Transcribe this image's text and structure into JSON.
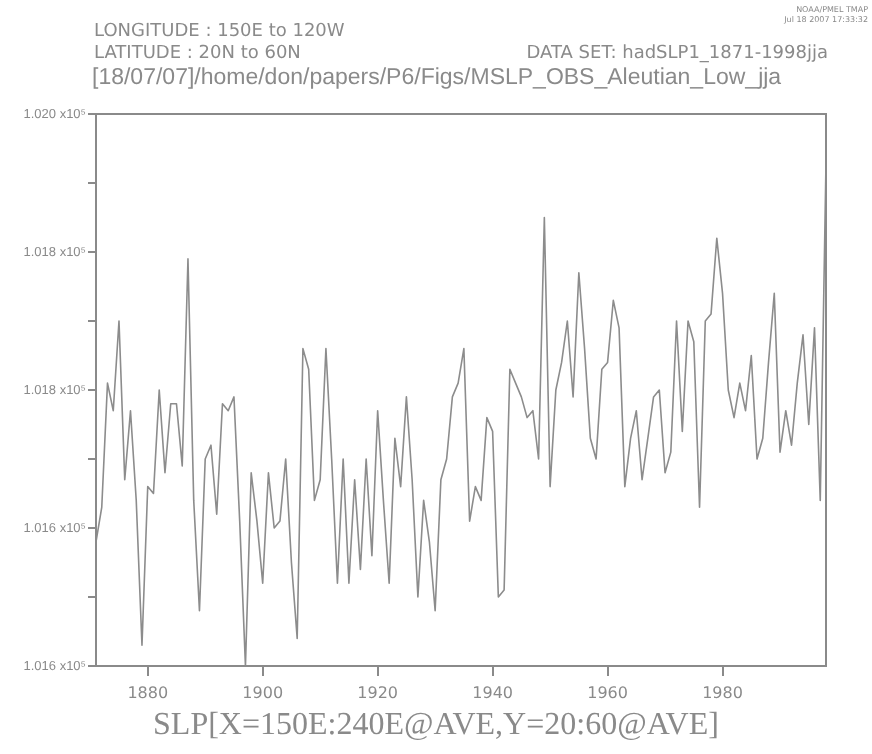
{
  "chart_data": {
    "type": "line",
    "title": "[18/07/07]/home/don/papers/P6/Figs/MSLP_OBS_Aleutian_Low_jja",
    "xlabel": "SLP[X=150E:240E@AVE,Y=20:60@AVE]",
    "annotations": [
      "LONGITUDE : 150E to 120W",
      "LATITUDE : 20N to 60N",
      "DATA SET: hadSLP1_1871-1998jja",
      "NOAA/PMEL TMAP",
      "Jul 18 2007 17:33:32"
    ],
    "x": [
      1871,
      1872,
      1873,
      1874,
      1875,
      1876,
      1877,
      1878,
      1879,
      1880,
      1881,
      1882,
      1883,
      1884,
      1885,
      1886,
      1887,
      1888,
      1889,
      1890,
      1891,
      1892,
      1893,
      1894,
      1895,
      1896,
      1897,
      1898,
      1899,
      1900,
      1901,
      1902,
      1903,
      1904,
      1905,
      1906,
      1907,
      1908,
      1909,
      1910,
      1911,
      1912,
      1913,
      1914,
      1915,
      1916,
      1917,
      1918,
      1919,
      1920,
      1921,
      1922,
      1923,
      1924,
      1925,
      1926,
      1927,
      1928,
      1929,
      1930,
      1931,
      1932,
      1933,
      1934,
      1935,
      1936,
      1937,
      1938,
      1939,
      1940,
      1941,
      1942,
      1943,
      1944,
      1945,
      1946,
      1947,
      1948,
      1949,
      1950,
      1951,
      1952,
      1953,
      1954,
      1955,
      1956,
      1957,
      1958,
      1959,
      1960,
      1961,
      1962,
      1963,
      1964,
      1965,
      1966,
      1967,
      1968,
      1969,
      1970,
      1971,
      1972,
      1973,
      1974,
      1975,
      1976,
      1977,
      1978,
      1979,
      1980,
      1981,
      1982,
      1983,
      1984,
      1985,
      1986,
      1987,
      1988,
      1989,
      1990,
      1991,
      1992,
      1993,
      1994,
      1995,
      1996,
      1997,
      1998
    ],
    "series": [
      {
        "color": "#8c8c8c",
        "values": [
          101640,
          101665,
          101755,
          101735,
          101800,
          101685,
          101735,
          101670,
          101565,
          101680,
          101675,
          101750,
          101690,
          101740,
          101740,
          101695,
          101845,
          101670,
          101590,
          101700,
          101710,
          101660,
          101740,
          101735,
          101745,
          101655,
          101550,
          101690,
          101655,
          101610,
          101690,
          101650,
          101655,
          101700,
          101625,
          101570,
          101780,
          101765,
          101670,
          101685,
          101780,
          101700,
          101610,
          101700,
          101610,
          101685,
          101620,
          101700,
          101630,
          101735,
          101670,
          101610,
          101715,
          101680,
          101745,
          101685,
          101600,
          101670,
          101640,
          101590,
          101685,
          101700,
          101745,
          101755,
          101780,
          101655,
          101680,
          101670,
          101730,
          101720,
          101600,
          101605,
          101765,
          101755,
          101745,
          101730,
          101735,
          101700,
          101875,
          101680,
          101750,
          101770,
          101800,
          101745,
          101835,
          101780,
          101715,
          101700,
          101765,
          101770,
          101815,
          101795,
          101680,
          101715,
          101735,
          101685,
          101715,
          101745,
          101750,
          101690,
          101705,
          101800,
          101720,
          101800,
          101785,
          101665,
          101800,
          101805,
          101860,
          101820,
          101750,
          101730,
          101755,
          101735,
          101775,
          101700,
          101715,
          101770,
          101820,
          101705,
          101735,
          101710,
          101755,
          101790,
          101725,
          101795,
          101670,
          101915
        ]
      }
    ],
    "xlim": [
      1871,
      1998
    ],
    "xticks": [
      1880,
      1900,
      1920,
      1940,
      1960,
      1980
    ],
    "ylim": [
      101550,
      101950
    ],
    "yticks": [
      {
        "value": 101550,
        "label": "1.016 x10⁵"
      },
      {
        "value": 101600,
        "label": null
      },
      {
        "value": 101650,
        "label": "1.016 x10⁵"
      },
      {
        "value": 101700,
        "label": null
      },
      {
        "value": 101750,
        "label": "1.018 x10⁵"
      },
      {
        "value": 101800,
        "label": null
      },
      {
        "value": 101850,
        "label": "1.018 x10⁵"
      },
      {
        "value": 101900,
        "label": null
      },
      {
        "value": 101950,
        "label": "1.020 x10⁵"
      }
    ],
    "grid": false,
    "legend": false,
    "marker": "none",
    "line_style": "solid"
  }
}
